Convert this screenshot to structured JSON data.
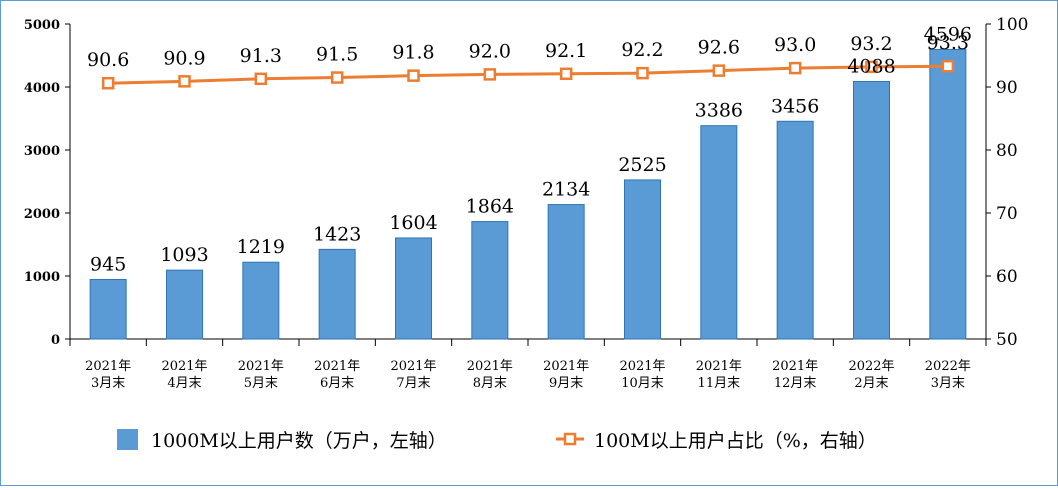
{
  "chart_data": {
    "type": "bar+line",
    "categories": [
      [
        "2021年",
        "3月末"
      ],
      [
        "2021年",
        "4月末"
      ],
      [
        "2021年",
        "5月末"
      ],
      [
        "2021年",
        "6月末"
      ],
      [
        "2021年",
        "7月末"
      ],
      [
        "2021年",
        "8月末"
      ],
      [
        "2021年",
        "9月末"
      ],
      [
        "2021年",
        "10月末"
      ],
      [
        "2021年",
        "11月末"
      ],
      [
        "2021年",
        "12月末"
      ],
      [
        "2022年",
        "2月末"
      ],
      [
        "2022年",
        "3月末"
      ]
    ],
    "series": [
      {
        "name": "1000M以上用户数（万户，左轴）",
        "type": "bar",
        "axis": "left",
        "color": "#5b9bd5",
        "values": [
          945,
          1093,
          1219,
          1423,
          1604,
          1864,
          2134,
          2525,
          3386,
          3456,
          4088,
          4596
        ]
      },
      {
        "name": "100M以上用户占比（%，右轴）",
        "type": "line",
        "axis": "right",
        "color": "#ed7d31",
        "values": [
          90.6,
          90.9,
          91.3,
          91.5,
          91.8,
          92.0,
          92.1,
          92.2,
          92.6,
          93.0,
          93.2,
          93.3
        ]
      }
    ],
    "left_axis": {
      "min": 0,
      "max": 5000,
      "ticks": [
        0,
        1000,
        2000,
        3000,
        4000,
        5000
      ]
    },
    "right_axis": {
      "min": 50,
      "max": 100,
      "ticks": [
        50,
        60,
        70,
        80,
        90,
        100
      ]
    },
    "legend_position": "bottom",
    "grid": false
  }
}
